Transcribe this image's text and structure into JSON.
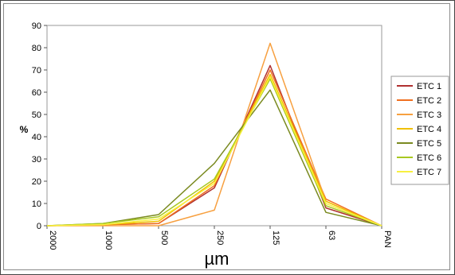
{
  "chart_data": {
    "type": "line",
    "title": "",
    "xlabel": "µm",
    "ylabel": "%",
    "ylim": [
      0,
      90
    ],
    "yticks": [
      "0",
      "10",
      "20",
      "30",
      "40",
      "50",
      "60",
      "70",
      "80",
      "90"
    ],
    "categories": [
      "2000",
      "1000",
      "500",
      "250",
      "125",
      "63",
      "PAN"
    ],
    "grid": false,
    "legend_position": "right",
    "series": [
      {
        "name": "ETC 1",
        "color": "#b03030",
        "values": [
          0,
          0.5,
          1,
          17,
          72,
          8,
          0
        ]
      },
      {
        "name": "ETC 2",
        "color": "#f07020",
        "values": [
          0,
          0.5,
          1,
          18,
          70,
          12,
          0
        ]
      },
      {
        "name": "ETC 3",
        "color": "#f7a040",
        "values": [
          0,
          0,
          0,
          7,
          82,
          11,
          0
        ]
      },
      {
        "name": "ETC 4",
        "color": "#f0c000",
        "values": [
          0,
          0.5,
          2,
          20,
          68,
          11,
          0
        ]
      },
      {
        "name": "ETC 5",
        "color": "#7a8a20",
        "values": [
          0,
          1,
          5,
          28,
          61,
          6,
          0
        ]
      },
      {
        "name": "ETC 6",
        "color": "#a8c820",
        "values": [
          0,
          1,
          4,
          21,
          66,
          9,
          0
        ]
      },
      {
        "name": "ETC 7",
        "color": "#f8f040",
        "values": [
          0,
          0.5,
          3,
          19,
          67,
          10,
          0
        ]
      }
    ]
  }
}
